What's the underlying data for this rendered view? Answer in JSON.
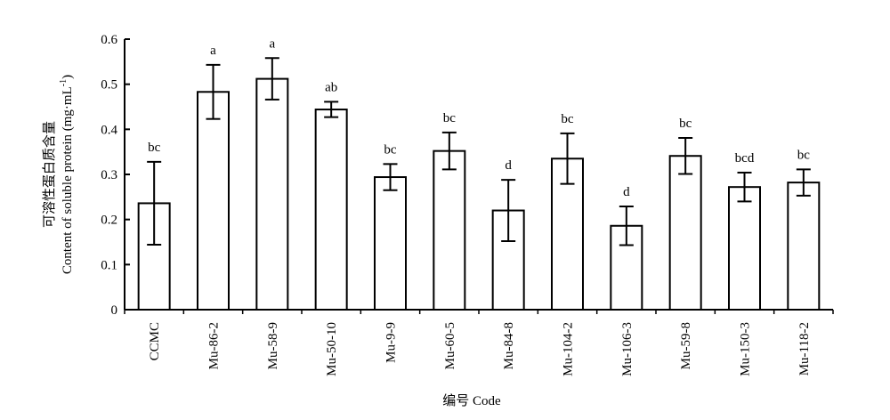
{
  "chart_data": {
    "type": "bar",
    "xlabel": "编号 Code",
    "ylabel_line1": "可溶性蛋白质含量",
    "ylabel_line2_prefix": "Content of soluble protein (mg·mL",
    "ylabel_line2_sup": "-1",
    "ylabel_line2_suffix": ")",
    "ylim": [
      0,
      0.6
    ],
    "yticks": [
      "0",
      "0.1",
      "0.2",
      "0.3",
      "0.4",
      "0.5",
      "0.6"
    ],
    "categories": [
      "CCMC",
      "Mu-86-2",
      "Mu-58-9",
      "Mu-50-10",
      "Mu-9-9",
      "Mu-60-5",
      "Mu-84-8",
      "Mu-104-2",
      "Mu-106-3",
      "Mu-59-8",
      "Mu-150-3",
      "Mu-118-2"
    ],
    "values": [
      0.236,
      0.483,
      0.512,
      0.444,
      0.294,
      0.352,
      0.22,
      0.335,
      0.186,
      0.341,
      0.272,
      0.282
    ],
    "errors": [
      0.092,
      0.06,
      0.046,
      0.017,
      0.029,
      0.041,
      0.068,
      0.056,
      0.043,
      0.04,
      0.032,
      0.029
    ],
    "significance": [
      "bc",
      "a",
      "a",
      "ab",
      "bc",
      "bc",
      "d",
      "bc",
      "d",
      "bc",
      "bcd",
      "bc"
    ],
    "colors": {
      "bar_fill": "#ffffff",
      "stroke": "#000000"
    }
  }
}
